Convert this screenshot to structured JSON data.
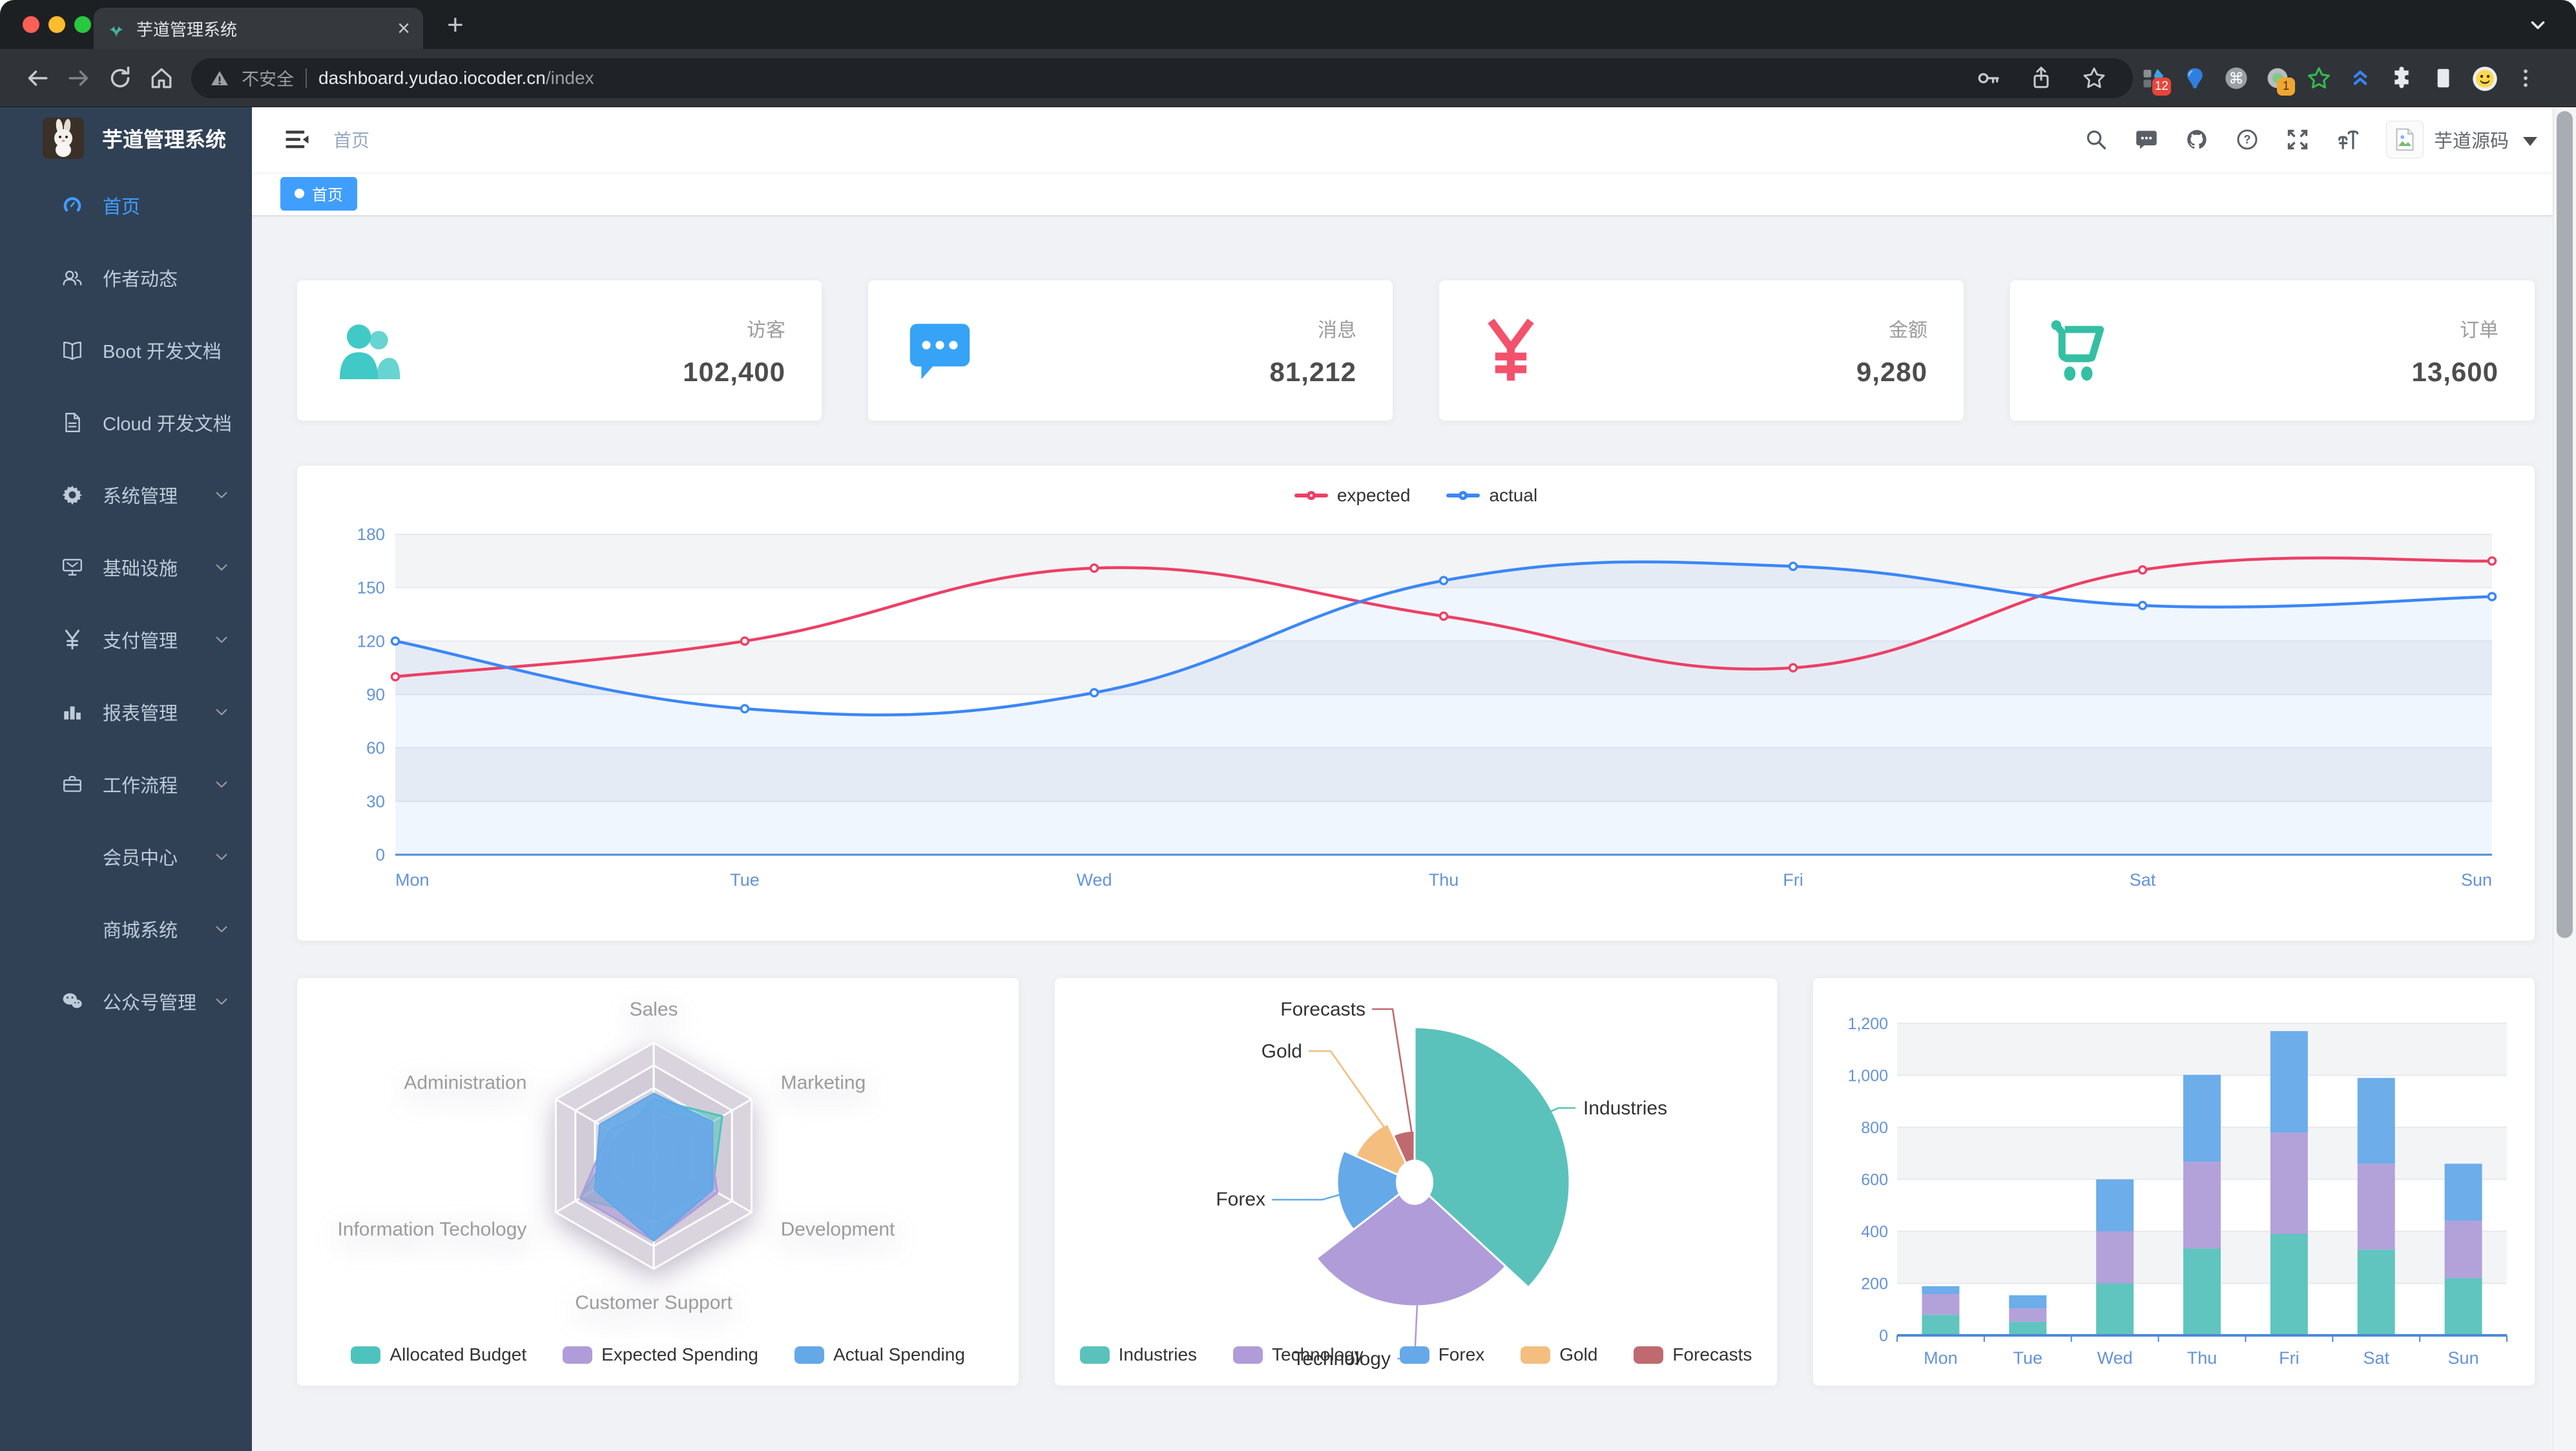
{
  "theme": {
    "accent": "#409eff",
    "sidebar_bg": "#304156",
    "sidebar_text": "#bfcbd9",
    "content_bg": "#f0f2f5"
  },
  "browser": {
    "tab_title": "芋道管理系统",
    "security_label": "不安全",
    "url_host": "dashboard.yudao.iocoder.cn",
    "url_path": "/index",
    "ext_badge_1": "12",
    "ext_badge_2": "1"
  },
  "sidebar": {
    "logo_title": "芋道管理系统",
    "items": [
      {
        "label": "首页",
        "icon": "dashboard-icon",
        "active": true
      },
      {
        "label": "作者动态",
        "icon": "people-icon"
      },
      {
        "label": "Boot 开发文档",
        "icon": "book-icon"
      },
      {
        "label": "Cloud 开发文档",
        "icon": "document-icon"
      },
      {
        "label": "系统管理",
        "icon": "gear-icon",
        "has_children": true
      },
      {
        "label": "基础设施",
        "icon": "monitor-icon",
        "has_children": true
      },
      {
        "label": "支付管理",
        "icon": "yen-icon",
        "has_children": true
      },
      {
        "label": "报表管理",
        "icon": "barchart-icon",
        "has_children": true
      },
      {
        "label": "工作流程",
        "icon": "briefcase-icon",
        "has_children": true
      },
      {
        "label": "会员中心",
        "icon": null,
        "nested": true,
        "has_children": true
      },
      {
        "label": "商城系统",
        "icon": null,
        "nested": true,
        "has_children": true
      },
      {
        "label": "公众号管理",
        "icon": "wechat-icon",
        "has_children": true
      }
    ]
  },
  "navbar": {
    "breadcrumb": "首页",
    "username": "芋道源码"
  },
  "tags": {
    "active_label": "首页"
  },
  "stats": [
    {
      "label": "访客",
      "value": "102,400",
      "color": "#40c9c6",
      "icon": "people-icon"
    },
    {
      "label": "消息",
      "value": "81,212",
      "color": "#36a3f7",
      "icon": "message-icon"
    },
    {
      "label": "金额",
      "value": "9,280",
      "color": "#f4516c",
      "icon": "money-icon"
    },
    {
      "label": "订单",
      "value": "13,600",
      "color": "#34bfa3",
      "icon": "cart-icon"
    }
  ],
  "chart_data": [
    {
      "id": "line",
      "type": "line",
      "categories": [
        "Mon",
        "Tue",
        "Wed",
        "Thu",
        "Fri",
        "Sat",
        "Sun"
      ],
      "ylim": [
        0,
        180
      ],
      "ytick_step": 30,
      "yticks": [
        "0",
        "30",
        "60",
        "90",
        "120",
        "150",
        "180"
      ],
      "grid": true,
      "legend_position": "top",
      "series": [
        {
          "name": "expected",
          "color": "#ec4066",
          "values": [
            100,
            120,
            161,
            134,
            105,
            160,
            165
          ]
        },
        {
          "name": "actual",
          "color": "#3b87f6",
          "area": "rgba(59,135,246,0.08)",
          "values": [
            120,
            82,
            91,
            154,
            162,
            140,
            145
          ]
        }
      ]
    },
    {
      "id": "radar",
      "type": "radar",
      "axes": [
        "Sales",
        "Marketing",
        "Development",
        "Customer Support",
        "Information Techology",
        "Administration"
      ],
      "max": [
        10000,
        20000,
        20000,
        20000,
        20000,
        20000
      ],
      "series": [
        {
          "name": "Allocated Budget",
          "color": "#4ec3bd",
          "values": [
            5000,
            14000,
            12000,
            11000,
            15000,
            7000
          ]
        },
        {
          "name": "Expected Spending",
          "color": "#af9cd9",
          "values": [
            4000,
            11000,
            13000,
            15000,
            15000,
            9000
          ]
        },
        {
          "name": "Actual Spending",
          "color": "#64a8e8",
          "values": [
            5500,
            12000,
            12000,
            15000,
            12000,
            11000
          ]
        }
      ],
      "legend_position": "bottom"
    },
    {
      "id": "pie",
      "type": "pie",
      "rose": true,
      "slices": [
        {
          "name": "Industries",
          "value": 320,
          "color": "#5ac2bb",
          "radius": 240
        },
        {
          "name": "Technology",
          "value": 240,
          "color": "#af9cd9",
          "radius": 192
        },
        {
          "name": "Forex",
          "value": 149,
          "color": "#66a9e8",
          "radius": 120
        },
        {
          "name": "Gold",
          "value": 100,
          "color": "#f4be7f",
          "radius": 100
        },
        {
          "name": "Forecasts",
          "value": 59,
          "color": "#bf6a6f",
          "radius": 80
        }
      ],
      "labels": [
        {
          "name": "Industries",
          "text": [
            818,
            211
          ],
          "anchor": "start",
          "line": [
            [
              742,
              217
            ],
            [
              780,
              201
            ],
            [
              806,
              201
            ]
          ]
        },
        {
          "name": "Forecasts",
          "text": [
            481,
            58
          ],
          "anchor": "end",
          "line": [
            [
              553,
              242
            ],
            [
              523,
              48
            ],
            [
              491,
              48
            ]
          ]
        },
        {
          "name": "Gold",
          "text": [
            383,
            123
          ],
          "anchor": "end",
          "line": [
            [
              512,
              234
            ],
            [
              427,
              113
            ],
            [
              393,
              113
            ]
          ]
        },
        {
          "name": "Forex",
          "text": [
            326,
            352
          ],
          "anchor": "end",
          "line": [
            [
              467,
              328
            ],
            [
              414,
              343
            ],
            [
              336,
              343
            ]
          ]
        },
        {
          "name": "Technology",
          "text": [
            520,
            599
          ],
          "anchor": "end",
          "line": [
            [
              561,
              505
            ],
            [
              557,
              589
            ],
            [
              530,
              589
            ]
          ]
        }
      ],
      "legend_position": "bottom"
    },
    {
      "id": "bar",
      "type": "bar",
      "stacked": true,
      "categories": [
        "Mon",
        "Tue",
        "Wed",
        "Thu",
        "Fri",
        "Sat",
        "Sun"
      ],
      "ylim": [
        0,
        1200
      ],
      "ytick_step": 200,
      "yticks": [
        "0",
        "200",
        "400",
        "600",
        "800",
        "1,000",
        "1,200"
      ],
      "series": [
        {
          "color": "#5fc5be",
          "values": [
            79,
            52,
            200,
            334,
            390,
            330,
            220
          ]
        },
        {
          "color": "#b3a1da",
          "values": [
            80,
            52,
            200,
            334,
            390,
            330,
            220
          ]
        },
        {
          "color": "#6cadea",
          "values": [
            30,
            50,
            200,
            334,
            390,
            330,
            220
          ]
        }
      ]
    }
  ]
}
